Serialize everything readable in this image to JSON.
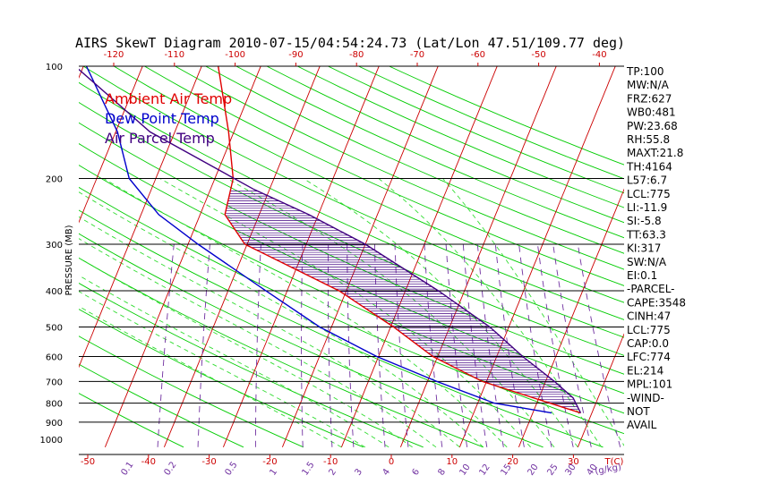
{
  "chart_data": {
    "type": "line",
    "title": "AIRS SkewT Diagram 2010-07-15/04:54:24.73 (Lat/Lon 47.51/109.77 deg)",
    "ylabel": "PRESSURE (MB)",
    "xlabel": "T(C)",
    "mixing_ratio_unit": "g/kg",
    "ylim": [
      1000,
      100
    ],
    "y_scale": "log",
    "pressure_ticks": [
      100,
      200,
      300,
      400,
      500,
      600,
      700,
      800,
      900,
      1000
    ],
    "pressure_lines": [
      200,
      300,
      400,
      500,
      600,
      700,
      800,
      900
    ],
    "top_temperature_ticks": [
      -120,
      -110,
      -100,
      -90,
      -80,
      -70,
      -60,
      -50,
      -40
    ],
    "bottom_temperature_ticks": [
      -50,
      -40,
      -30,
      -20,
      -10,
      0,
      10,
      20,
      30
    ],
    "mixing_ratio_ticks": [
      "0.1",
      "0.2",
      "0.5",
      "1",
      "1.5",
      "2",
      "3",
      "4",
      "6",
      "8",
      "10",
      "12",
      "15",
      "20",
      "25",
      "30",
      "40"
    ],
    "legend_entries": [
      "Ambient Air Temp",
      "Dew Point Temp",
      "Air Parcel Temp"
    ],
    "series": [
      {
        "name": "Ambient Air Temp",
        "color": "#e00000",
        "points": [
          [
            850,
            28.1
          ],
          [
            700,
            9.3
          ],
          [
            600,
            -0.8
          ],
          [
            500,
            -9.5
          ],
          [
            400,
            -21.2
          ],
          [
            300,
            -40.4
          ],
          [
            250,
            -45.8
          ],
          [
            200,
            -46.9
          ],
          [
            150,
            -50.9
          ],
          [
            100,
            -57.2
          ]
        ]
      },
      {
        "name": "Dew Point Temp",
        "color": "#0000cc",
        "points": [
          [
            850,
            23.2
          ],
          [
            800,
            12.8
          ],
          [
            700,
            1.6
          ],
          [
            600,
            -10.3
          ],
          [
            500,
            -22.0
          ],
          [
            400,
            -33.6
          ],
          [
            300,
            -48.3
          ],
          [
            250,
            -57.0
          ],
          [
            200,
            -64.5
          ],
          [
            150,
            -69.7
          ],
          [
            100,
            -79.5
          ]
        ]
      },
      {
        "name": "Air Parcel Temp",
        "color": "#400080",
        "points": [
          [
            850,
            28.1
          ],
          [
            775,
            25.8
          ],
          [
            700,
            21.5
          ],
          [
            600,
            14.4
          ],
          [
            500,
            6.8
          ],
          [
            400,
            -4.4
          ],
          [
            300,
            -20.0
          ],
          [
            250,
            -31.6
          ],
          [
            214,
            -42.6
          ],
          [
            150,
            -64.2
          ],
          [
            100,
            -81.4
          ]
        ]
      }
    ]
  },
  "stats": [
    "TP:100",
    "MW:N/A",
    "FRZ:627",
    "WB0:481",
    "PW:23.68",
    "RH:55.8",
    "MAXT:21.8",
    "TH:4164",
    "L57:6.7",
    "LCL:775",
    "LI:-11.9",
    "SI:-5.8",
    "TT:63.3",
    "KI:317",
    "SW:N/A",
    "EI:0.1",
    "-PARCEL-",
    "CAPE:3548",
    "CINH:47",
    "LCL:775",
    "CAP:0.0",
    "LFC:774",
    "EL:214",
    "MPL:101",
    "-WIND-",
    "NOT",
    "AVAIL"
  ],
  "colors": {
    "ambient": "#e00000",
    "dewpoint": "#0000cc",
    "parcel": "#400080",
    "isotherm": "#cc0000",
    "dry_adiabat": "#00cc00",
    "moist_adiabat": "#33dd33",
    "mixing_ratio": "#7030a0",
    "tick_top_bottom": "#cc0000",
    "tick_mixing": "#7030a0",
    "hatch": "#400080",
    "pressure_line": "#000000"
  }
}
